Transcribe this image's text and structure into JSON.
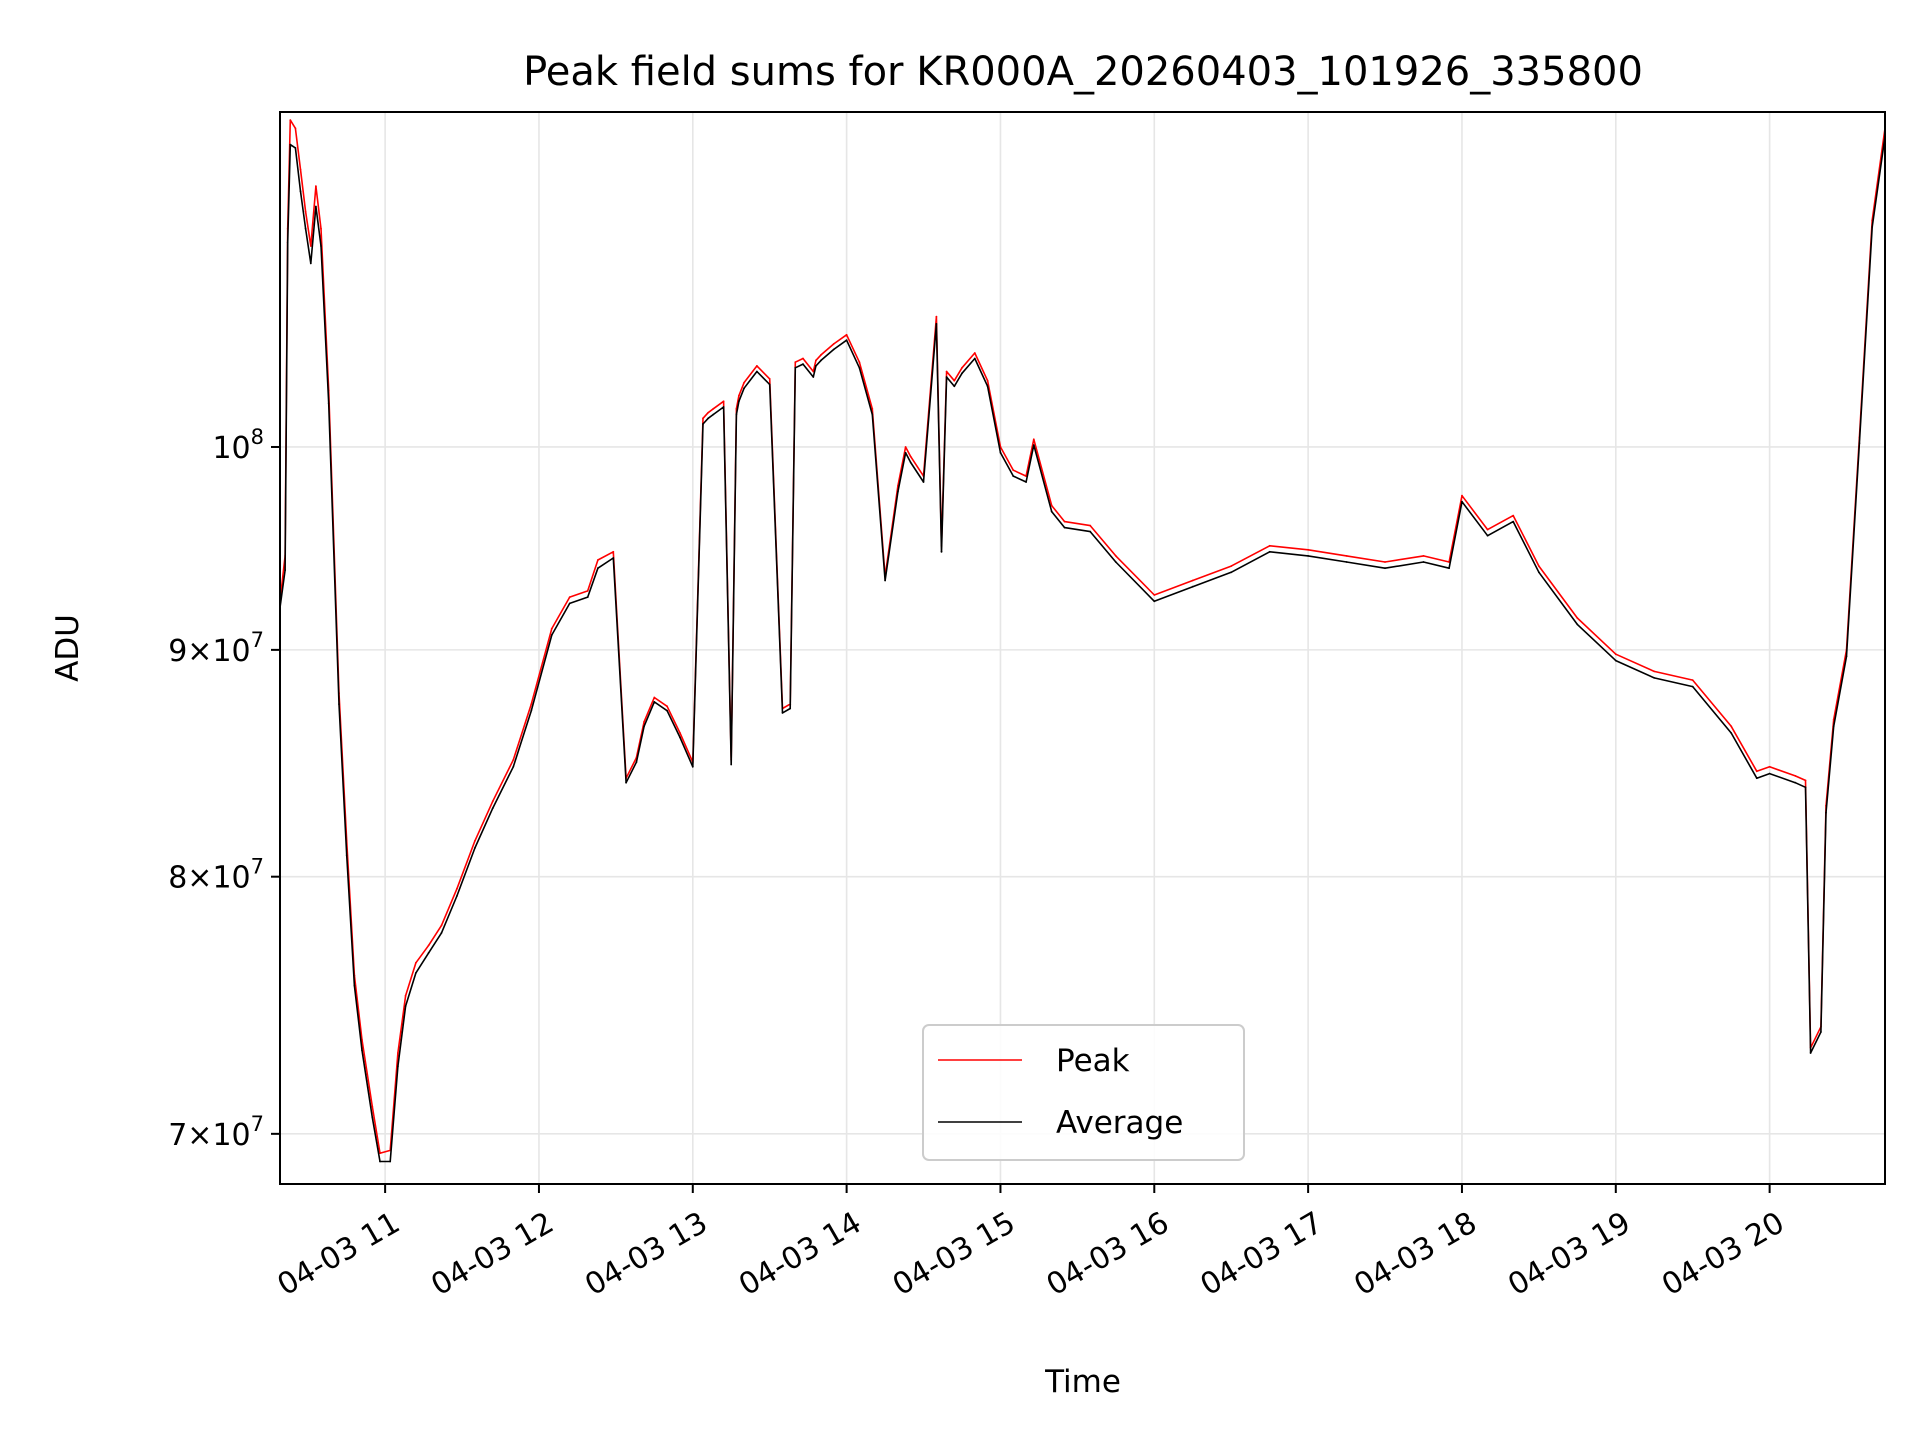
{
  "chart_data": {
    "type": "line",
    "title": "Peak field sums for KR000A_20260403_101926_335800",
    "xlabel": "Time",
    "ylabel": "ADU",
    "yscale": "log",
    "grid": true,
    "legend_position": "lower center",
    "xlim": [
      "2026-04-03 10:19",
      "2026-04-03 20:45"
    ],
    "ylim": [
      68200000,
      119000000
    ],
    "x_ticks": [
      {
        "value": "2026-04-03 11:00",
        "label": "04-03 11"
      },
      {
        "value": "2026-04-03 12:00",
        "label": "04-03 12"
      },
      {
        "value": "2026-04-03 13:00",
        "label": "04-03 13"
      },
      {
        "value": "2026-04-03 14:00",
        "label": "04-03 14"
      },
      {
        "value": "2026-04-03 15:00",
        "label": "04-03 15"
      },
      {
        "value": "2026-04-03 16:00",
        "label": "04-03 16"
      },
      {
        "value": "2026-04-03 17:00",
        "label": "04-03 17"
      },
      {
        "value": "2026-04-03 18:00",
        "label": "04-03 18"
      },
      {
        "value": "2026-04-03 19:00",
        "label": "04-03 19"
      },
      {
        "value": "2026-04-03 20:00",
        "label": "04-03 20"
      }
    ],
    "y_ticks": [
      {
        "value": 70000000,
        "mantissa": "7",
        "exponent": "7"
      },
      {
        "value": 80000000,
        "mantissa": "8",
        "exponent": "7"
      },
      {
        "value": 90000000,
        "mantissa": "9",
        "exponent": "7"
      },
      {
        "value": 100000000,
        "mantissa": "",
        "exponent": "8"
      }
    ],
    "series": [
      {
        "name": "Peak",
        "color": "#ff0000",
        "x": [
          "2026-04-03 10:19",
          "2026-04-03 10:21",
          "2026-04-03 10:22",
          "2026-04-03 10:23",
          "2026-04-03 10:25",
          "2026-04-03 10:27",
          "2026-04-03 10:29",
          "2026-04-03 10:31",
          "2026-04-03 10:33",
          "2026-04-03 10:35",
          "2026-04-03 10:38",
          "2026-04-03 10:42",
          "2026-04-03 10:45",
          "2026-04-03 10:48",
          "2026-04-03 10:51",
          "2026-04-03 10:55",
          "2026-04-03 10:58",
          "2026-04-03 11:02",
          "2026-04-03 11:05",
          "2026-04-03 11:08",
          "2026-04-03 11:12",
          "2026-04-03 11:17",
          "2026-04-03 11:22",
          "2026-04-03 11:28",
          "2026-04-03 11:35",
          "2026-04-03 11:42",
          "2026-04-03 11:50",
          "2026-04-03 11:57",
          "2026-04-03 12:05",
          "2026-04-03 12:12",
          "2026-04-03 12:19",
          "2026-04-03 12:23",
          "2026-04-03 12:29",
          "2026-04-03 12:34",
          "2026-04-03 12:38",
          "2026-04-03 12:41",
          "2026-04-03 12:45",
          "2026-04-03 12:50",
          "2026-04-03 12:55",
          "2026-04-03 13:00",
          "2026-04-03 13:04",
          "2026-04-03 13:06",
          "2026-04-03 13:08",
          "2026-04-03 13:12",
          "2026-04-03 13:15",
          "2026-04-03 13:17",
          "2026-04-03 13:18",
          "2026-04-03 13:20",
          "2026-04-03 13:25",
          "2026-04-03 13:30",
          "2026-04-03 13:35",
          "2026-04-03 13:38",
          "2026-04-03 13:40",
          "2026-04-03 13:43",
          "2026-04-03 13:47",
          "2026-04-03 13:48",
          "2026-04-03 13:50",
          "2026-04-03 13:55",
          "2026-04-03 14:00",
          "2026-04-03 14:05",
          "2026-04-03 14:10",
          "2026-04-03 14:15",
          "2026-04-03 14:20",
          "2026-04-03 14:23",
          "2026-04-03 14:25",
          "2026-04-03 14:30",
          "2026-04-03 14:35",
          "2026-04-03 14:37",
          "2026-04-03 14:39",
          "2026-04-03 14:42",
          "2026-04-03 14:45",
          "2026-04-03 14:50",
          "2026-04-03 14:55",
          "2026-04-03 15:00",
          "2026-04-03 15:05",
          "2026-04-03 15:10",
          "2026-04-03 15:13",
          "2026-04-03 15:20",
          "2026-04-03 15:25",
          "2026-04-03 15:35",
          "2026-04-03 15:45",
          "2026-04-03 16:00",
          "2026-04-03 16:15",
          "2026-04-03 16:30",
          "2026-04-03 16:45",
          "2026-04-03 17:00",
          "2026-04-03 17:15",
          "2026-04-03 17:30",
          "2026-04-03 17:45",
          "2026-04-03 17:55",
          "2026-04-03 18:00",
          "2026-04-03 18:10",
          "2026-04-03 18:20",
          "2026-04-03 18:30",
          "2026-04-03 18:45",
          "2026-04-03 19:00",
          "2026-04-03 19:15",
          "2026-04-03 19:30",
          "2026-04-03 19:45",
          "2026-04-03 19:55",
          "2026-04-03 20:00",
          "2026-04-03 20:10",
          "2026-04-03 20:14",
          "2026-04-03 20:16",
          "2026-04-03 20:20",
          "2026-04-03 20:22",
          "2026-04-03 20:25",
          "2026-04-03 20:30",
          "2026-04-03 20:35",
          "2026-04-03 20:40",
          "2026-04-03 20:45"
        ],
        "values": [
          92300000,
          94500000,
          112000000,
          118500000,
          118000000,
          115500000,
          113000000,
          111000000,
          114500000,
          112000000,
          103000000,
          88000000,
          81500000,
          76000000,
          73500000,
          71000000,
          69300000,
          69400000,
          73000000,
          75200000,
          76500000,
          77200000,
          78000000,
          79500000,
          81500000,
          83200000,
          85000000,
          87500000,
          91000000,
          92500000,
          92800000,
          94300000,
          94700000,
          84200000,
          85100000,
          86700000,
          87800000,
          87400000,
          86200000,
          84900000,
          101500000,
          101800000,
          102000000,
          102400000,
          85000000,
          102000000,
          102700000,
          103400000,
          104300000,
          103600000,
          87300000,
          87500000,
          104500000,
          104700000,
          104000000,
          104600000,
          104900000,
          105500000,
          106000000,
          104500000,
          102000000,
          93500000,
          98000000,
          100000000,
          99500000,
          98500000,
          107000000,
          95000000,
          104000000,
          103500000,
          104200000,
          105000000,
          103500000,
          100000000,
          98800000,
          98500000,
          100400000,
          97000000,
          96200000,
          96000000,
          94500000,
          92600000,
          93300000,
          94000000,
          95000000,
          94800000,
          94500000,
          94200000,
          94500000,
          94200000,
          97500000,
          95800000,
          96500000,
          94000000,
          91500000,
          89800000,
          89000000,
          88600000,
          86500000,
          84500000,
          84700000,
          84300000,
          84100000,
          73200000,
          74000000,
          83000000,
          86800000,
          90000000,
          100500000,
          112500000,
          118000000
        ]
      },
      {
        "name": "Average",
        "color": "#000000",
        "x": [
          "2026-04-03 10:19",
          "2026-04-03 10:21",
          "2026-04-03 10:22",
          "2026-04-03 10:23",
          "2026-04-03 10:25",
          "2026-04-03 10:27",
          "2026-04-03 10:29",
          "2026-04-03 10:31",
          "2026-04-03 10:33",
          "2026-04-03 10:35",
          "2026-04-03 10:38",
          "2026-04-03 10:42",
          "2026-04-03 10:45",
          "2026-04-03 10:48",
          "2026-04-03 10:51",
          "2026-04-03 10:55",
          "2026-04-03 10:58",
          "2026-04-03 11:02",
          "2026-04-03 11:05",
          "2026-04-03 11:08",
          "2026-04-03 11:12",
          "2026-04-03 11:17",
          "2026-04-03 11:22",
          "2026-04-03 11:28",
          "2026-04-03 11:35",
          "2026-04-03 11:42",
          "2026-04-03 11:50",
          "2026-04-03 11:57",
          "2026-04-03 12:05",
          "2026-04-03 12:12",
          "2026-04-03 12:19",
          "2026-04-03 12:23",
          "2026-04-03 12:29",
          "2026-04-03 12:34",
          "2026-04-03 12:38",
          "2026-04-03 12:41",
          "2026-04-03 12:45",
          "2026-04-03 12:50",
          "2026-04-03 12:55",
          "2026-04-03 13:00",
          "2026-04-03 13:04",
          "2026-04-03 13:06",
          "2026-04-03 13:08",
          "2026-04-03 13:12",
          "2026-04-03 13:15",
          "2026-04-03 13:17",
          "2026-04-03 13:18",
          "2026-04-03 13:20",
          "2026-04-03 13:25",
          "2026-04-03 13:30",
          "2026-04-03 13:35",
          "2026-04-03 13:38",
          "2026-04-03 13:40",
          "2026-04-03 13:43",
          "2026-04-03 13:47",
          "2026-04-03 13:48",
          "2026-04-03 13:50",
          "2026-04-03 13:55",
          "2026-04-03 14:00",
          "2026-04-03 14:05",
          "2026-04-03 14:10",
          "2026-04-03 14:15",
          "2026-04-03 14:20",
          "2026-04-03 14:23",
          "2026-04-03 14:25",
          "2026-04-03 14:30",
          "2026-04-03 14:35",
          "2026-04-03 14:37",
          "2026-04-03 14:39",
          "2026-04-03 14:42",
          "2026-04-03 14:45",
          "2026-04-03 14:50",
          "2026-04-03 14:55",
          "2026-04-03 15:00",
          "2026-04-03 15:05",
          "2026-04-03 15:10",
          "2026-04-03 15:13",
          "2026-04-03 15:20",
          "2026-04-03 15:25",
          "2026-04-03 15:35",
          "2026-04-03 15:45",
          "2026-04-03 16:00",
          "2026-04-03 16:15",
          "2026-04-03 16:30",
          "2026-04-03 16:45",
          "2026-04-03 17:00",
          "2026-04-03 17:15",
          "2026-04-03 17:30",
          "2026-04-03 17:45",
          "2026-04-03 17:55",
          "2026-04-03 18:00",
          "2026-04-03 18:10",
          "2026-04-03 18:20",
          "2026-04-03 18:30",
          "2026-04-03 18:45",
          "2026-04-03 19:00",
          "2026-04-03 19:15",
          "2026-04-03 19:30",
          "2026-04-03 19:45",
          "2026-04-03 19:55",
          "2026-04-03 20:00",
          "2026-04-03 20:10",
          "2026-04-03 20:14",
          "2026-04-03 20:16",
          "2026-04-03 20:20",
          "2026-04-03 20:22",
          "2026-04-03 20:25",
          "2026-04-03 20:30",
          "2026-04-03 20:35",
          "2026-04-03 20:40",
          "2026-04-03 20:45"
        ],
        "values": [
          92000000,
          93800000,
          111200000,
          117000000,
          116800000,
          114200000,
          112000000,
          110000000,
          113300000,
          111000000,
          102300000,
          87500000,
          80900000,
          75600000,
          73100000,
          70600000,
          69000000,
          69000000,
          72500000,
          74800000,
          76100000,
          76900000,
          77700000,
          79200000,
          81200000,
          82900000,
          84700000,
          87200000,
          90700000,
          92200000,
          92500000,
          93900000,
          94400000,
          84000000,
          84900000,
          86500000,
          87600000,
          87200000,
          86000000,
          84700000,
          101200000,
          101500000,
          101700000,
          102100000,
          84800000,
          101700000,
          102400000,
          103100000,
          104000000,
          103300000,
          87100000,
          87300000,
          104200000,
          104400000,
          103700000,
          104300000,
          104600000,
          105200000,
          105700000,
          104200000,
          101700000,
          93300000,
          97700000,
          99700000,
          99200000,
          98200000,
          106600000,
          94700000,
          103700000,
          103200000,
          103900000,
          104700000,
          103200000,
          99700000,
          98500000,
          98200000,
          100100000,
          96700000,
          95900000,
          95700000,
          94200000,
          92300000,
          93000000,
          93700000,
          94700000,
          94500000,
          94200000,
          93900000,
          94200000,
          93900000,
          97200000,
          95500000,
          96200000,
          93700000,
          91200000,
          89500000,
          88700000,
          88300000,
          86200000,
          84200000,
          84400000,
          84000000,
          83800000,
          73000000,
          73800000,
          82700000,
          86500000,
          89700000,
          100200000,
          112100000,
          117500000
        ]
      }
    ]
  }
}
